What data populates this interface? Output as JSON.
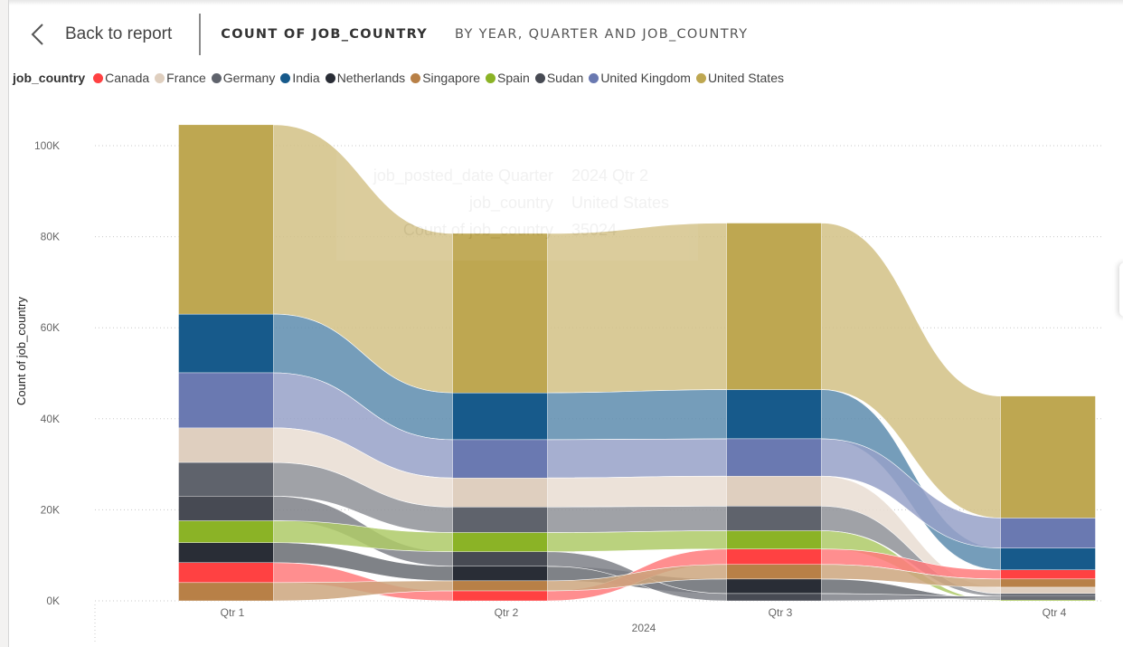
{
  "header": {
    "back_label": "Back to report",
    "title": "COUNT OF JOB_COUNTRY",
    "subtitle": "BY YEAR, QUARTER AND JOB_COUNTRY"
  },
  "top_icons": [
    "drill-down-icon",
    "expand-all-icon",
    "drill-up-icon"
  ],
  "legend": {
    "title": "job_country",
    "items": [
      {
        "name": "Canada",
        "color": "#FF4142"
      },
      {
        "name": "France",
        "color": "#DFCFBF"
      },
      {
        "name": "Germany",
        "color": "#5F636C"
      },
      {
        "name": "India",
        "color": "#175A8B"
      },
      {
        "name": "Netherlands",
        "color": "#292D36"
      },
      {
        "name": "Singapore",
        "color": "#B88047"
      },
      {
        "name": "Spain",
        "color": "#8BB326"
      },
      {
        "name": "Sudan",
        "color": "#474A53"
      },
      {
        "name": "United Kingdom",
        "color": "#6A79B1"
      },
      {
        "name": "United States",
        "color": "#BEA751"
      }
    ]
  },
  "tooltip_ghost": {
    "rows": [
      {
        "label": "job_posted_date Quarter",
        "value": "2024 Qtr 2"
      },
      {
        "label": "job_country",
        "value": "United States"
      },
      {
        "label": "Count of job_country",
        "value": "35024"
      }
    ]
  },
  "chart_data": {
    "type": "ribbon",
    "title": "Count of job_country by Year, Quarter and job_country",
    "xlabel": "2024",
    "ylabel": "Count of job_country",
    "categories": [
      "Qtr 1",
      "Qtr 2",
      "Qtr 3",
      "Qtr 4"
    ],
    "y_ticks": [
      "0K",
      "20K",
      "40K",
      "60K",
      "80K",
      "100K"
    ],
    "ylim": [
      0,
      104000
    ],
    "grid": true,
    "legend_position": "top-left",
    "series": [
      {
        "name": "Canada",
        "values": [
          4400,
          2200,
          3400,
          2000
        ]
      },
      {
        "name": "France",
        "values": [
          7600,
          6400,
          6600,
          1400
        ]
      },
      {
        "name": "Germany",
        "values": [
          7400,
          5600,
          5400,
          600
        ]
      },
      {
        "name": "India",
        "values": [
          12900,
          10300,
          10800,
          4800
        ]
      },
      {
        "name": "Netherlands",
        "values": [
          4400,
          3200,
          3200,
          400
        ]
      },
      {
        "name": "Singapore",
        "values": [
          4000,
          2200,
          3200,
          1800
        ]
      },
      {
        "name": "Spain",
        "values": [
          4800,
          4200,
          4000,
          200
        ]
      },
      {
        "name": "Sudan",
        "values": [
          5400,
          3200,
          1600,
          400
        ]
      },
      {
        "name": "United Kingdom",
        "values": [
          12100,
          8400,
          8200,
          6600
        ]
      },
      {
        "name": "United States",
        "values": [
          41600,
          35024,
          36600,
          26800
        ]
      }
    ]
  }
}
